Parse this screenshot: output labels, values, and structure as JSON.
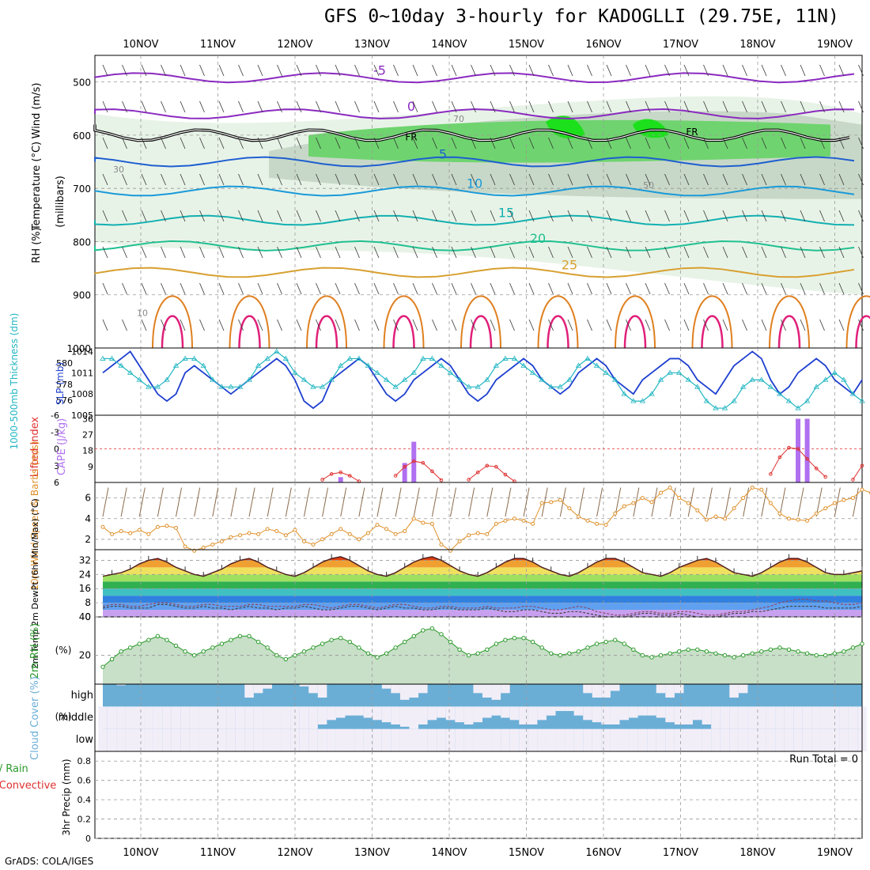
{
  "title": "GFS 0~10day 3-hourly for KADOGLLI (29.75E, 11N)",
  "footer": "GrADS: COLA/IGES",
  "colors": {
    "temp_line": "#3030d0",
    "rh_fill": "#2fc12f",
    "slp": "#1e3fcf",
    "thickness": "#22b6c2",
    "lifted_index": "#e03030",
    "cape": "#b070f0",
    "wind": "#e0902a",
    "rh_area": "#2a9a2a",
    "cloud": "#6aaed6"
  },
  "chart_data": [
    {
      "type": "contour",
      "panel": "upper-air",
      "ylabels": [
        "Wind (m/s)",
        "Temperature (°C)",
        "RH (%)"
      ],
      "ylabel_units": "(millibars)",
      "yticks": [
        500,
        600,
        700,
        800,
        900,
        1000
      ],
      "ylim": [
        1000,
        450
      ],
      "x_ticks": [
        "10NOV",
        "11NOV",
        "12NOV",
        "13NOV",
        "14NOV",
        "15NOV",
        "16NOV",
        "17NOV",
        "18NOV",
        "19NOV"
      ],
      "temperature_contours": [
        {
          "label": "-5",
          "level_mb": 492
        },
        {
          "label": "0",
          "level_mb": 560
        },
        {
          "label": "5",
          "level_mb": 650
        },
        {
          "label": "10",
          "level_mb": 705
        },
        {
          "label": "15",
          "level_mb": 760
        },
        {
          "label": "20",
          "level_mb": 808
        },
        {
          "label": "25",
          "level_mb": 858
        }
      ],
      "freezing_label": "FR",
      "rh_labels": [
        "30",
        "70",
        "50",
        "10"
      ]
    },
    {
      "type": "line",
      "panel": "slp-thickness",
      "ylabel_left": "1000-500mb Thickness (dm)",
      "ylabel_right": "SLP (mb)",
      "yticks_left": [
        576,
        578,
        580
      ],
      "yticks_right": [
        1005,
        1008,
        1011,
        1014
      ],
      "ylim_slp": [
        1005,
        1014
      ],
      "series": [
        {
          "name": "SLP",
          "values": [
            1011,
            1012,
            1013,
            1014,
            1012,
            1010,
            1008,
            1007,
            1008,
            1011,
            1012,
            1011,
            1010,
            1009,
            1008,
            1009,
            1010,
            1011,
            1012,
            1013,
            1012,
            1010,
            1007,
            1006,
            1007,
            1010,
            1011,
            1012,
            1013,
            1012,
            1010,
            1008,
            1007,
            1008,
            1010,
            1011,
            1012,
            1013,
            1012,
            1010,
            1008,
            1007,
            1008,
            1010,
            1011,
            1012,
            1013,
            1012,
            1010,
            1009,
            1008,
            1009,
            1011,
            1012,
            1013,
            1012,
            1010,
            1009,
            1008,
            1010,
            1011,
            1012,
            1013,
            1013,
            1012,
            1010,
            1009,
            1008,
            1010,
            1012,
            1013,
            1014,
            1013,
            1010,
            1008,
            1009,
            1011,
            1012,
            1013,
            1012,
            1010,
            1009,
            1008,
            1010
          ]
        },
        {
          "name": "Thickness",
          "values": [
            1013,
            1013,
            1012,
            1011,
            1010,
            1009,
            1009,
            1010,
            1012,
            1013,
            1013,
            1012,
            1010,
            1009,
            1009,
            1009,
            1010,
            1012,
            1013,
            1014,
            1013,
            1011,
            1010,
            1009,
            1009,
            1010,
            1012,
            1013,
            1013,
            1012,
            1011,
            1010,
            1009,
            1010,
            1011,
            1013,
            1013,
            1012,
            1011,
            1010,
            1009,
            1009,
            1010,
            1012,
            1013,
            1013,
            1012,
            1011,
            1010,
            1009,
            1009,
            1010,
            1012,
            1013,
            1012,
            1011,
            1010,
            1008,
            1007,
            1007,
            1008,
            1010,
            1011,
            1011,
            1010,
            1009,
            1007,
            1006,
            1006,
            1007,
            1009,
            1010,
            1010,
            1009,
            1008,
            1007,
            1006,
            1007,
            1009,
            1010,
            1011,
            1010,
            1008,
            1007
          ]
        }
      ]
    },
    {
      "type": "bar",
      "panel": "lifted-index-cape",
      "ylabel_left": "Lifted Index",
      "ylabel_right": "CAPE (J/kg)",
      "yticks_left": [
        -6,
        -3,
        0,
        3,
        6
      ],
      "yticks_right": [
        9,
        18,
        27,
        36
      ],
      "ylim_cape": [
        0,
        38
      ],
      "cape_bars": [
        {
          "time_index": 26,
          "value": 3
        },
        {
          "time_index": 33,
          "value": 11
        },
        {
          "time_index": 34,
          "value": 23
        },
        {
          "time_index": 76,
          "value": 36
        },
        {
          "time_index": 77,
          "value": 36
        }
      ],
      "lifted_index_segments": [
        {
          "start": 24,
          "values": [
            5.5,
            4.5,
            4.2,
            4.8,
            5.8
          ]
        },
        {
          "start": 32,
          "values": [
            4.8,
            3.2,
            2.2,
            2.5,
            4.0,
            5.6
          ]
        },
        {
          "start": 40,
          "values": [
            5.5,
            4.2,
            3.0,
            3.2,
            4.6,
            5.8
          ]
        },
        {
          "start": 73,
          "values": [
            4.5,
            1.5,
            -0.2,
            0.0,
            1.8,
            3.5,
            5.0
          ]
        },
        {
          "start": 82,
          "values": [
            5.5,
            3.0
          ]
        }
      ]
    },
    {
      "type": "line",
      "panel": "wind",
      "ylabel": "10m Wind Speed & Barbs (m/s)",
      "yticks": [
        2,
        4,
        6
      ],
      "ylim": [
        1,
        7.5
      ],
      "series": [
        {
          "name": "Wind speed",
          "values": [
            3.2,
            2.5,
            2.8,
            2.6,
            2.9,
            2.5,
            3.2,
            3.3,
            3.1,
            1.3,
            0.9,
            1.2,
            1.5,
            1.8,
            2.2,
            2.4,
            2.6,
            2.5,
            3.0,
            2.8,
            2.4,
            2.9,
            1.8,
            1.5,
            2.0,
            2.5,
            3.0,
            2.5,
            2.0,
            2.6,
            3.4,
            3.0,
            2.5,
            2.8,
            4.0,
            3.6,
            3.5,
            1.5,
            0.9,
            1.8,
            2.4,
            2.6,
            2.5,
            3.5,
            3.8,
            4.0,
            3.8,
            3.5,
            5.5,
            5.6,
            5.8,
            5.0,
            4.2,
            3.8,
            3.5,
            3.4,
            4.5,
            5.2,
            5.5,
            6.0,
            5.6,
            6.5,
            7.0,
            6.0,
            5.5,
            4.8,
            3.9,
            4.2,
            4.0,
            5.0,
            6.0,
            7.0,
            6.8,
            5.5,
            4.5,
            4.0,
            3.9,
            3.8,
            4.5,
            5.0,
            5.5,
            5.8,
            6.0,
            6.8,
            6.5,
            6.0
          ]
        }
      ]
    },
    {
      "type": "area",
      "panel": "temperature",
      "ylabel": "2m Temp 2m DewPt (6hr Min/Max) (°C)",
      "yticks": [
        0,
        8,
        16,
        24,
        32
      ],
      "ylim": [
        0,
        38
      ],
      "series": [
        {
          "name": "2m Temp",
          "values": [
            23,
            24,
            25,
            27,
            30,
            32,
            33,
            31,
            28,
            26,
            24,
            23,
            25,
            27,
            30,
            32,
            33,
            31,
            28,
            26,
            24,
            23,
            25,
            28,
            31,
            33,
            34,
            32,
            29,
            26,
            24,
            23,
            25,
            28,
            31,
            33,
            34,
            32,
            29,
            26,
            24,
            23,
            25,
            28,
            31,
            33,
            33,
            31,
            28,
            26,
            24,
            23,
            25,
            28,
            31,
            33,
            33,
            31,
            28,
            25,
            24,
            23,
            25,
            28,
            30,
            32,
            33,
            31,
            28,
            25,
            24,
            23,
            25,
            28,
            31,
            33,
            33,
            31,
            28,
            25,
            24,
            24,
            25,
            26
          ]
        },
        {
          "name": "2m DewPt",
          "values": [
            6,
            7,
            7,
            6,
            6,
            7,
            8,
            8,
            7,
            6,
            6,
            7,
            7,
            6,
            6,
            6,
            7,
            7,
            6,
            6,
            6,
            6,
            7,
            7,
            6,
            5,
            6,
            7,
            7,
            6,
            5,
            6,
            7,
            7,
            6,
            5,
            5,
            6,
            6,
            5,
            5,
            5,
            6,
            5,
            5,
            5,
            6,
            6,
            5,
            4,
            4,
            5,
            6,
            5,
            3,
            2,
            1,
            1,
            2,
            3,
            3,
            2,
            2,
            3,
            3,
            2,
            1,
            1,
            2,
            3,
            3,
            4,
            5,
            6,
            8,
            9,
            10,
            10,
            9,
            9,
            8,
            7,
            7,
            8
          ]
        },
        {
          "name": "Min dew",
          "values": [
            5,
            6,
            6,
            5,
            5,
            5,
            7,
            7,
            6,
            5,
            5,
            6,
            5,
            5,
            4,
            5,
            6,
            5,
            5,
            4,
            5,
            5,
            6,
            5,
            4,
            4,
            5,
            6,
            6,
            5,
            4,
            5,
            6,
            5,
            5,
            4,
            4,
            5,
            5,
            4,
            4,
            4,
            5,
            4,
            3,
            3,
            4,
            4,
            3,
            2,
            2,
            3,
            3,
            2,
            1,
            0,
            0,
            0,
            1,
            2,
            2,
            1,
            1,
            2,
            1,
            0,
            0,
            0,
            1,
            2,
            2,
            3,
            3,
            4,
            5,
            6,
            6,
            6,
            6,
            5,
            5,
            5,
            5,
            6
          ]
        }
      ]
    },
    {
      "type": "area",
      "panel": "rh",
      "ylabel": "2m RH (%)",
      "yticks": [
        20,
        40
      ],
      "ylim": [
        5,
        40
      ],
      "series": [
        {
          "name": "2m RH",
          "values": [
            14,
            18,
            22,
            24,
            26,
            28,
            30,
            28,
            25,
            22,
            20,
            22,
            24,
            26,
            28,
            30,
            30,
            27,
            24,
            20,
            18,
            20,
            22,
            24,
            26,
            28,
            29,
            27,
            24,
            21,
            19,
            21,
            24,
            27,
            30,
            33,
            34,
            31,
            27,
            23,
            20,
            21,
            23,
            26,
            28,
            29,
            29,
            27,
            24,
            21,
            20,
            21,
            22,
            24,
            26,
            27,
            28,
            26,
            23,
            20,
            19,
            20,
            21,
            22,
            23,
            23,
            22,
            21,
            20,
            19,
            20,
            21,
            22,
            23,
            24,
            23,
            22,
            21,
            20,
            20,
            21,
            22,
            24,
            26
          ]
        }
      ]
    },
    {
      "type": "area",
      "panel": "cloud",
      "ylabel": "Cloud Cover (%)",
      "layers": [
        "high",
        "middle",
        "low"
      ],
      "series": [
        {
          "name": "high",
          "values": [
            100,
            100,
            95,
            100,
            100,
            100,
            100,
            100,
            100,
            100,
            100,
            100,
            100,
            100,
            100,
            100,
            40,
            60,
            80,
            100,
            100,
            100,
            90,
            60,
            40,
            100,
            100,
            100,
            100,
            100,
            100,
            80,
            60,
            30,
            40,
            60,
            100,
            100,
            100,
            100,
            100,
            60,
            40,
            30,
            60,
            100,
            100,
            100,
            100,
            100,
            100,
            100,
            100,
            60,
            40,
            40,
            70,
            100,
            100,
            100,
            100,
            60,
            40,
            60,
            100,
            100,
            100,
            100,
            100,
            40,
            60,
            100,
            100,
            100,
            100,
            100,
            100,
            100,
            100,
            100,
            100,
            100,
            100,
            100
          ]
        },
        {
          "name": "middle",
          "values": [
            0,
            0,
            0,
            0,
            0,
            0,
            0,
            0,
            0,
            0,
            0,
            0,
            0,
            0,
            0,
            0,
            0,
            0,
            0,
            0,
            0,
            0,
            0,
            0,
            20,
            40,
            50,
            60,
            60,
            50,
            40,
            30,
            20,
            10,
            0,
            20,
            40,
            50,
            40,
            30,
            20,
            30,
            50,
            60,
            50,
            40,
            20,
            20,
            40,
            60,
            80,
            80,
            60,
            40,
            30,
            20,
            20,
            40,
            50,
            60,
            60,
            50,
            30,
            20,
            20,
            40,
            20,
            0,
            0,
            0,
            0,
            0,
            0,
            0,
            0,
            0,
            0,
            0,
            0,
            0,
            0,
            0,
            0,
            0
          ]
        },
        {
          "name": "low",
          "values": [
            0,
            0,
            0,
            0,
            0,
            0,
            0,
            0,
            0,
            0,
            0,
            0,
            0,
            0,
            0,
            0,
            0,
            0,
            0,
            0,
            0,
            0,
            0,
            0,
            0,
            0,
            0,
            0,
            0,
            0,
            0,
            0,
            0,
            0,
            0,
            0,
            0,
            0,
            0,
            0,
            0,
            0,
            0,
            0,
            0,
            0,
            0,
            0,
            0,
            0,
            0,
            0,
            0,
            0,
            0,
            0,
            0,
            0,
            0,
            0,
            0,
            0,
            0,
            0,
            0,
            0,
            0,
            0,
            0,
            0,
            0,
            0,
            0,
            0,
            0,
            0,
            0,
            0,
            0,
            0,
            0,
            0,
            0,
            0
          ]
        }
      ],
      "ytick_labels": [
        "high",
        "middle",
        "low"
      ]
    },
    {
      "type": "bar",
      "panel": "precip",
      "ylabel_left_parts": [
        "Total / Rain",
        "Convective"
      ],
      "ylabel": "3hr Precip (mm)",
      "yticks": [
        0,
        0.2,
        0.4,
        0.6,
        0.8
      ],
      "ylim": [
        0,
        0.9
      ],
      "run_total": "Run Total = 0",
      "values": []
    }
  ]
}
